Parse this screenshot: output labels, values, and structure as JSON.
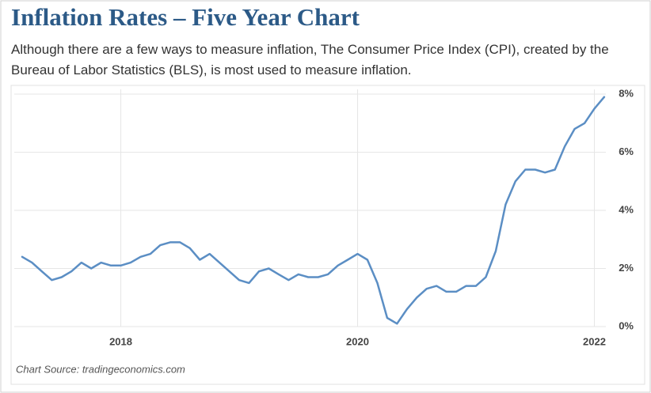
{
  "chart_data": {
    "type": "line",
    "title": "Inflation Rates – Five Year Chart",
    "subtitle": "Although there are a few ways to measure inflation, The Consumer Price Index (CPI), created by the Bureau of Labor Statistics (BLS), is most used to measure inflation.",
    "source": "Chart Source: tradingeconomics.com",
    "x": [
      2017.167,
      2017.25,
      2017.333,
      2017.417,
      2017.5,
      2017.583,
      2017.667,
      2017.75,
      2017.833,
      2017.917,
      2018.0,
      2018.083,
      2018.167,
      2018.25,
      2018.333,
      2018.417,
      2018.5,
      2018.583,
      2018.667,
      2018.75,
      2018.833,
      2018.917,
      2019.0,
      2019.083,
      2019.167,
      2019.25,
      2019.333,
      2019.417,
      2019.5,
      2019.583,
      2019.667,
      2019.75,
      2019.833,
      2019.917,
      2020.0,
      2020.083,
      2020.167,
      2020.25,
      2020.333,
      2020.417,
      2020.5,
      2020.583,
      2020.667,
      2020.75,
      2020.833,
      2020.917,
      2021.0,
      2021.083,
      2021.167,
      2021.25,
      2021.333,
      2021.417,
      2021.5,
      2021.583,
      2021.667,
      2021.75,
      2021.833,
      2021.917,
      2022.0,
      2022.083
    ],
    "series": [
      {
        "name": "CPI",
        "color": "#5b8ec4",
        "values": [
          2.4,
          2.2,
          1.9,
          1.6,
          1.7,
          1.9,
          2.2,
          2.0,
          2.2,
          2.1,
          2.1,
          2.2,
          2.4,
          2.5,
          2.8,
          2.9,
          2.9,
          2.7,
          2.3,
          2.5,
          2.2,
          1.9,
          1.6,
          1.5,
          1.9,
          2.0,
          1.8,
          1.6,
          1.8,
          1.7,
          1.7,
          1.8,
          2.1,
          2.3,
          2.5,
          2.3,
          1.5,
          0.3,
          0.1,
          0.6,
          1.0,
          1.3,
          1.4,
          1.2,
          1.2,
          1.4,
          1.4,
          1.7,
          2.6,
          4.2,
          5.0,
          5.4,
          5.4,
          5.3,
          5.4,
          6.2,
          6.8,
          7.0,
          7.5,
          7.9
        ]
      }
    ],
    "xlim": [
      2017.1,
      2022.097
    ],
    "xticks": [
      2018,
      2020,
      2022
    ],
    "ylim": [
      0,
      8
    ],
    "yticks": [
      {
        "value": 0,
        "label": "0%"
      },
      {
        "value": 2,
        "label": "2%"
      },
      {
        "value": 4,
        "label": "4%"
      },
      {
        "value": 6,
        "label": "6%"
      },
      {
        "value": 8,
        "label": "8%"
      }
    ],
    "grid": true
  }
}
